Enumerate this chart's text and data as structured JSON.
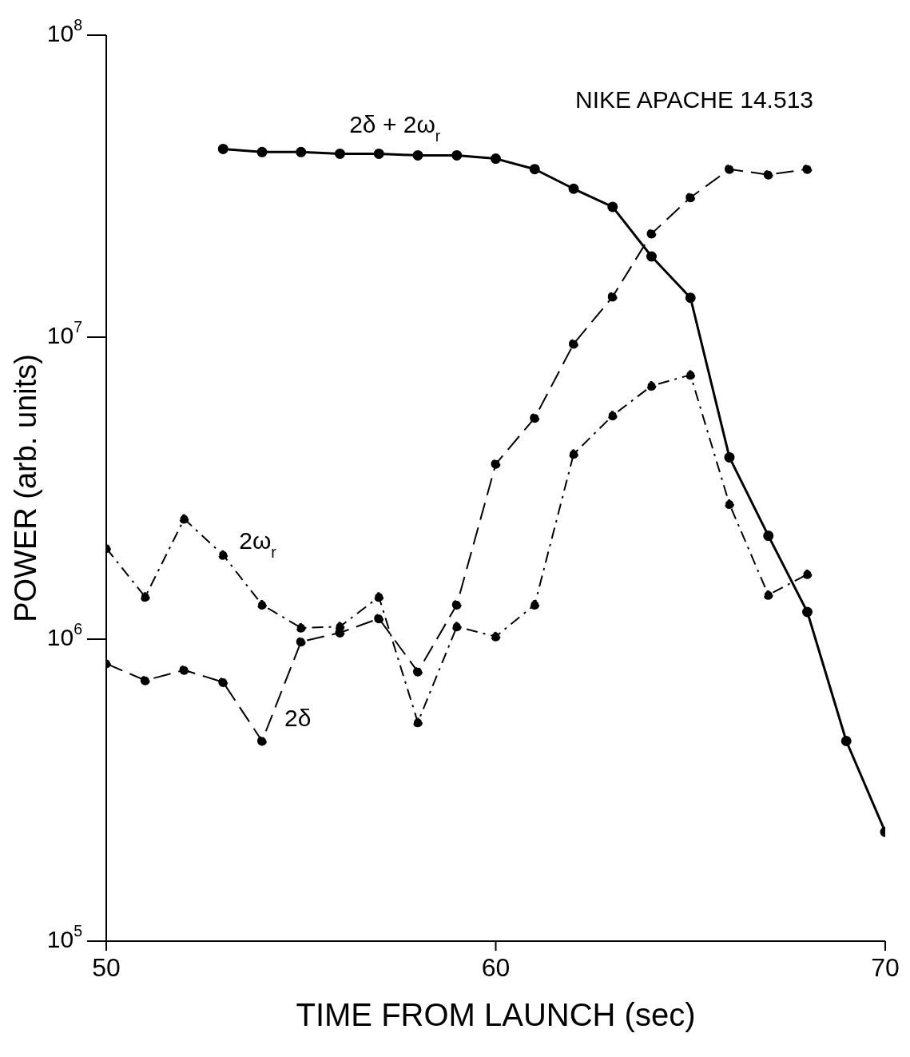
{
  "chart_data": {
    "type": "line",
    "xlabel": "TIME  FROM  LAUNCH (sec)",
    "ylabel": "POWER (arb. units)",
    "annotations": [
      "NIKE APACHE 14.513"
    ],
    "xlim": [
      50,
      70
    ],
    "xticks": [
      50,
      60,
      70
    ],
    "ylim": [
      100000,
      100000000
    ],
    "log": "y",
    "yticks": [
      {
        "value": 100000,
        "label": "10$^{5}$"
      },
      {
        "value": 1000000,
        "label": "10$^{6}$"
      },
      {
        "value": 10000000,
        "label": "10$^{7}$"
      },
      {
        "value": 100000000,
        "label": "10$^{8}$"
      }
    ],
    "marker": "circle",
    "series": [
      {
        "name": "2δ + 2ω$_{r}$",
        "color": "#000000",
        "line_style": "solid",
        "x": [
          53,
          54,
          55,
          56,
          57,
          58,
          59,
          60,
          61,
          62,
          63,
          64,
          65,
          66,
          67,
          68,
          69,
          70
        ],
        "values": [
          42000000,
          41000000,
          41000000,
          40500000,
          40500000,
          40000000,
          40000000,
          39000000,
          36000000,
          31000000,
          27000000,
          18500000,
          13500000,
          4000000,
          2200000,
          1230000,
          460000,
          230000
        ]
      },
      {
        "name": "2ω$_{r}$",
        "color": "#000000",
        "line_style": "dotted",
        "x": [
          50,
          51,
          52,
          53,
          54,
          55,
          56,
          57,
          58,
          59,
          60,
          61,
          62,
          63,
          64,
          65,
          66,
          67,
          68
        ],
        "values": [
          2000000,
          1380000,
          2500000,
          1900000,
          1300000,
          1090000,
          1100000,
          1380000,
          530000,
          1100000,
          1020000,
          1300000,
          4100000,
          5500000,
          6900000,
          7500000,
          2800000,
          1400000,
          1640000
        ]
      },
      {
        "name": "2δ",
        "color": "#000000",
        "line_style": "dashed",
        "x": [
          50,
          51,
          52,
          53,
          54,
          55,
          56,
          57,
          58,
          59,
          60,
          61,
          62,
          63,
          64,
          65,
          66,
          67,
          68
        ],
        "values": [
          830000,
          730000,
          790000,
          720000,
          460000,
          980000,
          1050000,
          1170000,
          780000,
          1300000,
          3800000,
          5400000,
          9500000,
          13600000,
          22000000,
          29000000,
          36000000,
          34500000,
          36000000
        ]
      }
    ]
  }
}
